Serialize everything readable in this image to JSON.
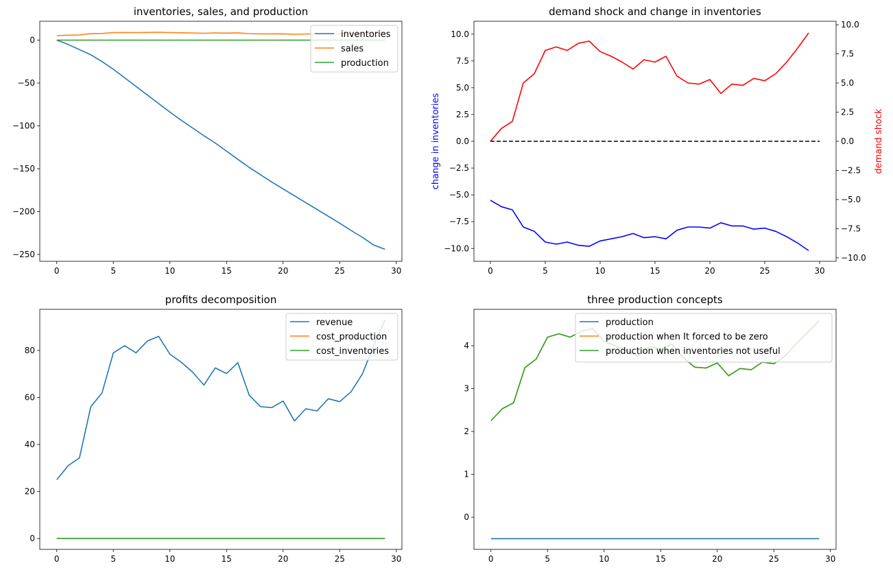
{
  "chart_data": [
    {
      "type": "line",
      "title": "inventories, sales, and production",
      "xlim": [
        -1.5,
        30.5
      ],
      "ylim": [
        -258,
        22
      ],
      "xticks": [
        0,
        5,
        10,
        15,
        20,
        25,
        30
      ],
      "yticks": [
        0,
        -50,
        -100,
        -150,
        -200,
        -250
      ],
      "legend_position": "top-right",
      "x": [
        0,
        1,
        2,
        3,
        4,
        5,
        6,
        7,
        8,
        9,
        10,
        11,
        12,
        13,
        14,
        15,
        16,
        17,
        18,
        19,
        20,
        21,
        22,
        23,
        24,
        25,
        26,
        27,
        28,
        29
      ],
      "series": [
        {
          "name": "inventories",
          "color": "#1f77b4",
          "values": [
            0,
            -5,
            -11,
            -17,
            -25,
            -34,
            -44,
            -54,
            -64,
            -74,
            -84,
            -93.5,
            -102.5,
            -111.5,
            -120,
            -129.5,
            -139,
            -148.5,
            -157,
            -165.5,
            -173.5,
            -181.5,
            -189.5,
            -197.5,
            -205.5,
            -213.5,
            -222,
            -230,
            -239,
            -244
          ]
        },
        {
          "name": "sales",
          "color": "#ff7f0e",
          "values": [
            5.2,
            5.8,
            6,
            7.5,
            7.8,
            8.8,
            8.9,
            8.8,
            9,
            9.2,
            8.8,
            8.6,
            8.4,
            8,
            8.4,
            8.2,
            8.5,
            7.6,
            7.3,
            7.3,
            7.4,
            6.8,
            7.2,
            7.2,
            7.4,
            7.3,
            7.6,
            7.9,
            8.3,
            8.6
          ]
        },
        {
          "name": "production",
          "color": "#2ca02c",
          "values": [
            0,
            0,
            0,
            0,
            0,
            0,
            0,
            0,
            0,
            0,
            0,
            0,
            0,
            0,
            0,
            0,
            0,
            0,
            0,
            0,
            0,
            0,
            0,
            0,
            0,
            0,
            0,
            0,
            0,
            0
          ]
        }
      ]
    },
    {
      "type": "line",
      "title": "demand shock and change in inventories",
      "ylabel": "change in inventories",
      "ylabel_right": "demand shock",
      "xlim": [
        -1.5,
        31.5
      ],
      "ylim": [
        -11.2,
        11.2
      ],
      "ylim_right": [
        -10.3,
        10.3
      ],
      "xticks": [
        0,
        5,
        10,
        15,
        20,
        25,
        30
      ],
      "yticks": [
        "10.0",
        "7.5",
        "5.0",
        "2.5",
        "0.0",
        "−2.5",
        "−5.0",
        "−7.5",
        "−10.0"
      ],
      "yticks_right": [
        "10.0",
        "7.5",
        "5.0",
        "2.5",
        "0.0",
        "−2.5",
        "−5.0",
        "−7.5",
        "−10.0"
      ],
      "x": [
        0,
        1,
        2,
        3,
        4,
        5,
        6,
        7,
        8,
        9,
        10,
        11,
        12,
        13,
        14,
        15,
        16,
        17,
        18,
        19,
        20,
        21,
        22,
        23,
        24,
        25,
        26,
        27,
        28,
        29
      ],
      "series": [
        {
          "name": "change in inventories",
          "color": "#0000ff",
          "values": [
            -5.5,
            -6.1,
            -6.4,
            -8,
            -8.4,
            -9.4,
            -9.6,
            -9.4,
            -9.7,
            -9.8,
            -9.3,
            -9.1,
            -8.9,
            -8.6,
            -9,
            -8.9,
            -9.1,
            -8.3,
            -8,
            -8,
            -8.1,
            -7.6,
            -7.9,
            -7.9,
            -8.2,
            -8.1,
            -8.4,
            -8.9,
            -9.5,
            -10.2
          ]
        },
        {
          "name": "demand shock",
          "color": "#ff0000",
          "axis": "right",
          "values": [
            0,
            1.1,
            1.7,
            5,
            5.8,
            7.8,
            8.1,
            7.8,
            8.4,
            8.6,
            7.7,
            7.3,
            6.8,
            6.2,
            7,
            6.8,
            7.3,
            5.6,
            5,
            4.9,
            5.3,
            4.1,
            4.9,
            4.8,
            5.4,
            5.2,
            5.8,
            6.8,
            8,
            9.3
          ]
        },
        {
          "name": "zero line",
          "color": "#000000",
          "style": "dashed",
          "x": [
            0,
            30
          ],
          "values": [
            0,
            0
          ]
        }
      ]
    },
    {
      "type": "line",
      "title": "profits decomposition",
      "xlim": [
        -1.5,
        30.5
      ],
      "ylim": [
        -4.6,
        97.5
      ],
      "xticks": [
        0,
        5,
        10,
        15,
        20,
        25,
        30
      ],
      "yticks": [
        80,
        60,
        40,
        20,
        0
      ],
      "legend_position": "top-right",
      "x": [
        0,
        1,
        2,
        3,
        4,
        5,
        6,
        7,
        8,
        9,
        10,
        11,
        12,
        13,
        14,
        15,
        16,
        17,
        18,
        19,
        20,
        21,
        22,
        23,
        24,
        25,
        26,
        27,
        28,
        29
      ],
      "series": [
        {
          "name": "revenue",
          "color": "#1f77b4",
          "values": [
            25,
            31,
            34.3,
            56,
            62,
            79,
            82,
            79,
            84,
            86,
            78.4,
            75,
            70.8,
            65.3,
            72.6,
            70.2,
            74.8,
            61,
            56.1,
            55.7,
            58.5,
            50,
            55.2,
            54.3,
            59.5,
            58.2,
            62.4,
            70,
            82,
            93
          ]
        },
        {
          "name": "cost_production",
          "color": "#ff7f0e",
          "values": [
            0,
            0,
            0,
            0,
            0,
            0,
            0,
            0,
            0,
            0,
            0,
            0,
            0,
            0,
            0,
            0,
            0,
            0,
            0,
            0,
            0,
            0,
            0,
            0,
            0,
            0,
            0,
            0,
            0,
            0
          ]
        },
        {
          "name": "cost_inventories",
          "color": "#2ca02c",
          "values": [
            0,
            0,
            0,
            0,
            0,
            0,
            0,
            0,
            0,
            0,
            0,
            0,
            0,
            0,
            0,
            0,
            0,
            0,
            0,
            0,
            0,
            0,
            0,
            0,
            0,
            0,
            0,
            0,
            0,
            0
          ]
        }
      ]
    },
    {
      "type": "line",
      "title": "three production concepts",
      "xlim": [
        -1.5,
        30.5
      ],
      "ylim": [
        -0.75,
        4.85
      ],
      "xticks": [
        0,
        5,
        10,
        15,
        20,
        25,
        30
      ],
      "yticks": [
        4,
        3,
        2,
        1,
        0
      ],
      "legend_position": "top-right",
      "x": [
        0,
        1,
        2,
        3,
        4,
        5,
        6,
        7,
        8,
        9,
        10,
        11,
        12,
        13,
        14,
        15,
        16,
        17,
        18,
        19,
        20,
        21,
        22,
        23,
        24,
        25,
        26,
        27,
        28,
        29
      ],
      "series": [
        {
          "name": "production",
          "color": "#1f77b4",
          "values": [
            -0.5,
            -0.5,
            -0.5,
            -0.5,
            -0.5,
            -0.5,
            -0.5,
            -0.5,
            -0.5,
            -0.5,
            -0.5,
            -0.5,
            -0.5,
            -0.5,
            -0.5,
            -0.5,
            -0.5,
            -0.5,
            -0.5,
            -0.5,
            -0.5,
            -0.5,
            -0.5,
            -0.5,
            -0.5,
            -0.5,
            -0.5,
            -0.5,
            -0.5,
            -0.5
          ]
        },
        {
          "name": "production when  It              forced to be zero",
          "color": "#ff7f0e",
          "values": [
            2.25,
            2.53,
            2.67,
            3.49,
            3.69,
            4.2,
            4.28,
            4.2,
            4.34,
            4.4,
            4.1,
            4,
            3.88,
            3.76,
            3.98,
            3.92,
            4.04,
            3.72,
            3.5,
            3.48,
            3.6,
            3.3,
            3.47,
            3.44,
            3.62,
            3.58,
            3.76,
            4.05,
            4.32,
            4.58
          ]
        },
        {
          "name": "production when              inventories not useful",
          "color": "#2ca02c",
          "values": [
            2.25,
            2.53,
            2.67,
            3.49,
            3.69,
            4.2,
            4.28,
            4.2,
            4.34,
            4.4,
            4.1,
            4,
            3.88,
            3.76,
            3.98,
            3.92,
            4.04,
            3.72,
            3.5,
            3.48,
            3.6,
            3.3,
            3.47,
            3.44,
            3.62,
            3.58,
            3.76,
            4.05,
            4.32,
            4.58
          ]
        }
      ]
    }
  ]
}
